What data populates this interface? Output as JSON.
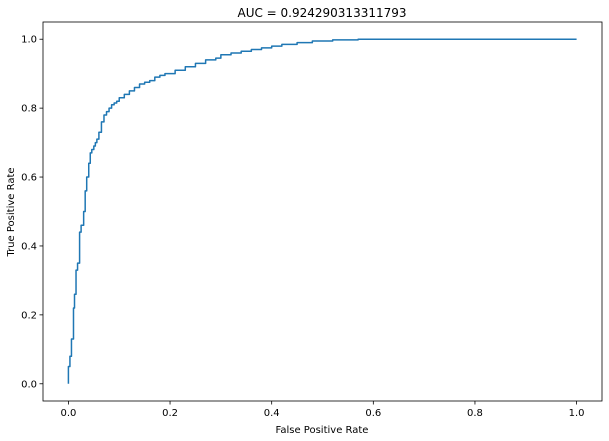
{
  "chart_data": {
    "type": "line",
    "title": "AUC = 0.924290313311793",
    "xlabel": "False Positive Rate",
    "ylabel": "True Positive Rate",
    "xlim": [
      -0.05,
      1.05
    ],
    "ylim": [
      -0.05,
      1.05
    ],
    "grid": false,
    "legend": "none",
    "x_ticks": [
      0.0,
      0.2,
      0.4,
      0.6,
      0.8,
      1.0
    ],
    "x_tick_labels": [
      "0.0",
      "0.2",
      "0.4",
      "0.6",
      "0.8",
      "1.0"
    ],
    "y_ticks": [
      0.0,
      0.2,
      0.4,
      0.6,
      0.8,
      1.0
    ],
    "y_tick_labels": [
      "0.0",
      "0.2",
      "0.4",
      "0.6",
      "0.8",
      "1.0"
    ],
    "colors": {
      "line": "#1f77b4"
    },
    "series": [
      {
        "x": [
          0.0,
          0.0,
          0.003,
          0.003,
          0.006,
          0.006,
          0.01,
          0.01,
          0.012,
          0.012,
          0.015,
          0.015,
          0.018,
          0.018,
          0.022,
          0.022,
          0.025,
          0.025,
          0.03,
          0.03,
          0.033,
          0.033,
          0.036,
          0.036,
          0.04,
          0.04,
          0.043,
          0.043,
          0.046,
          0.046,
          0.05,
          0.05,
          0.053,
          0.053,
          0.056,
          0.056,
          0.06,
          0.06,
          0.065,
          0.065,
          0.07,
          0.07,
          0.075,
          0.075,
          0.08,
          0.08,
          0.085,
          0.085,
          0.09,
          0.09,
          0.095,
          0.095,
          0.1,
          0.1,
          0.11,
          0.11,
          0.12,
          0.12,
          0.13,
          0.13,
          0.14,
          0.14,
          0.15,
          0.15,
          0.16,
          0.16,
          0.17,
          0.17,
          0.18,
          0.18,
          0.19,
          0.19,
          0.21,
          0.21,
          0.23,
          0.23,
          0.25,
          0.25,
          0.27,
          0.27,
          0.29,
          0.29,
          0.3,
          0.3,
          0.32,
          0.32,
          0.34,
          0.34,
          0.36,
          0.36,
          0.38,
          0.38,
          0.4,
          0.4,
          0.42,
          0.42,
          0.45,
          0.45,
          0.48,
          0.48,
          0.52,
          0.52,
          0.57,
          0.57,
          1.0
        ],
        "y": [
          0.0,
          0.05,
          0.05,
          0.08,
          0.08,
          0.13,
          0.13,
          0.22,
          0.22,
          0.26,
          0.26,
          0.33,
          0.33,
          0.35,
          0.35,
          0.44,
          0.44,
          0.46,
          0.46,
          0.5,
          0.5,
          0.56,
          0.56,
          0.6,
          0.6,
          0.64,
          0.64,
          0.67,
          0.67,
          0.68,
          0.68,
          0.69,
          0.69,
          0.7,
          0.7,
          0.71,
          0.71,
          0.73,
          0.73,
          0.76,
          0.76,
          0.78,
          0.78,
          0.79,
          0.79,
          0.8,
          0.8,
          0.81,
          0.81,
          0.815,
          0.815,
          0.82,
          0.82,
          0.83,
          0.83,
          0.84,
          0.84,
          0.85,
          0.85,
          0.86,
          0.86,
          0.87,
          0.87,
          0.875,
          0.875,
          0.88,
          0.88,
          0.89,
          0.89,
          0.895,
          0.895,
          0.9,
          0.9,
          0.91,
          0.91,
          0.92,
          0.92,
          0.93,
          0.93,
          0.94,
          0.94,
          0.945,
          0.945,
          0.955,
          0.955,
          0.96,
          0.96,
          0.965,
          0.965,
          0.97,
          0.97,
          0.975,
          0.975,
          0.98,
          0.98,
          0.985,
          0.985,
          0.99,
          0.99,
          0.995,
          0.995,
          0.998,
          0.998,
          1.0,
          1.0
        ]
      }
    ]
  }
}
